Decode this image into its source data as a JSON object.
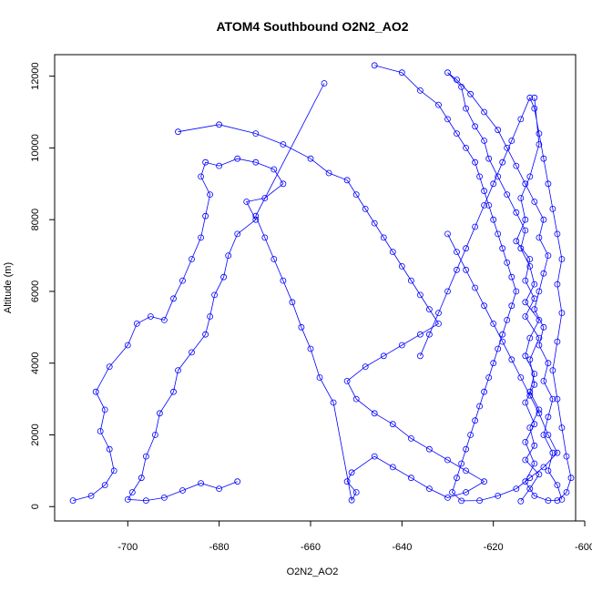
{
  "chart_data": {
    "type": "scatter",
    "title": "ATOM4 Southbound O2N2_AO2",
    "xlabel": "O2N2_AO2",
    "ylabel": "Altitude (m)",
    "xlim": [
      -716,
      -602
    ],
    "ylim": [
      -400,
      12600
    ],
    "x_ticks": [
      -700,
      -680,
      -660,
      -640,
      -620,
      -600
    ],
    "y_ticks": [
      0,
      2000,
      4000,
      6000,
      8000,
      10000,
      12000
    ],
    "series_color": "#0000ff",
    "points_with_lines": true,
    "clusters": [
      {
        "note": "main",
        "points": [
          [
            -614,
            150
          ],
          [
            -612,
            500
          ],
          [
            -610,
            900
          ],
          [
            -613,
            1300
          ],
          [
            -611,
            1700
          ],
          [
            -612,
            2200
          ],
          [
            -610,
            2700
          ],
          [
            -612,
            3200
          ],
          [
            -611,
            3700
          ],
          [
            -613,
            4200
          ],
          [
            -612,
            4700
          ],
          [
            -610,
            5200
          ],
          [
            -613,
            5700
          ],
          [
            -611,
            6200
          ],
          [
            -612,
            6700
          ],
          [
            -614,
            7200
          ],
          [
            -613,
            7700
          ],
          [
            -615,
            8200
          ],
          [
            -617,
            8700
          ],
          [
            -619,
            9200
          ],
          [
            -621,
            9700
          ],
          [
            -622,
            10200
          ],
          [
            -624,
            10600
          ],
          [
            -626,
            11100
          ],
          [
            -627,
            11700
          ],
          [
            -630,
            12100
          ],
          [
            -628,
            11900
          ],
          [
            -625,
            11500
          ],
          [
            -622,
            11000
          ],
          [
            -619,
            10500
          ],
          [
            -617,
            10000
          ],
          [
            -615,
            9500
          ],
          [
            -613,
            9000
          ],
          [
            -611,
            8500
          ],
          [
            -609,
            8000
          ],
          [
            -610,
            7500
          ],
          [
            -608,
            7000
          ],
          [
            -609,
            6500
          ],
          [
            -610,
            6000
          ],
          [
            -611,
            5500
          ],
          [
            -609,
            5000
          ],
          [
            -610,
            4500
          ],
          [
            -608,
            4000
          ],
          [
            -609,
            3500
          ],
          [
            -607,
            3000
          ],
          [
            -608,
            2500
          ],
          [
            -609,
            2000
          ],
          [
            -607,
            1500
          ],
          [
            -608,
            1000
          ],
          [
            -606,
            600
          ],
          [
            -605,
            200
          ]
        ]
      },
      {
        "note": "left",
        "points": [
          [
            -712,
            170
          ],
          [
            -708,
            300
          ],
          [
            -705,
            600
          ],
          [
            -703,
            1000
          ],
          [
            -704,
            1600
          ],
          [
            -706,
            2100
          ],
          [
            -705,
            2700
          ],
          [
            -707,
            3200
          ],
          [
            -704,
            3900
          ],
          [
            -700,
            4500
          ],
          [
            -698,
            5100
          ],
          [
            -695,
            5300
          ],
          [
            -692,
            5200
          ],
          [
            -690,
            5800
          ],
          [
            -688,
            6300
          ],
          [
            -686,
            6900
          ],
          [
            -684,
            7500
          ],
          [
            -683,
            8100
          ],
          [
            -682,
            8700
          ],
          [
            -684,
            9200
          ],
          [
            -683,
            9600
          ],
          [
            -680,
            9500
          ],
          [
            -676,
            9700
          ],
          [
            -672,
            9600
          ],
          [
            -668,
            9400
          ],
          [
            -666,
            9000
          ],
          [
            -670,
            8600
          ],
          [
            -674,
            8500
          ],
          [
            -672,
            8000
          ],
          [
            -676,
            7600
          ],
          [
            -678,
            7000
          ],
          [
            -679,
            6400
          ],
          [
            -681,
            5900
          ],
          [
            -682,
            5300
          ],
          [
            -683,
            4800
          ],
          [
            -686,
            4300
          ],
          [
            -689,
            3800
          ],
          [
            -690,
            3200
          ],
          [
            -693,
            2600
          ],
          [
            -694,
            2000
          ],
          [
            -696,
            1400
          ],
          [
            -697,
            800
          ],
          [
            -699,
            400
          ],
          [
            -700,
            200
          ],
          [
            -696,
            170
          ],
          [
            -692,
            250
          ],
          [
            -688,
            450
          ],
          [
            -684,
            650
          ],
          [
            -680,
            500
          ],
          [
            -676,
            700
          ]
        ]
      },
      {
        "note": "middle",
        "points": [
          [
            -689,
            10450
          ],
          [
            -680,
            10650
          ],
          [
            -672,
            10400
          ],
          [
            -666,
            10100
          ],
          [
            -660,
            9700
          ],
          [
            -656,
            9300
          ],
          [
            -652,
            9100
          ],
          [
            -650,
            8700
          ],
          [
            -648,
            8300
          ],
          [
            -646,
            7900
          ],
          [
            -644,
            7500
          ],
          [
            -642,
            7100
          ],
          [
            -640,
            6700
          ],
          [
            -638,
            6300
          ],
          [
            -636,
            5900
          ],
          [
            -634,
            5500
          ],
          [
            -632,
            5100
          ],
          [
            -636,
            4800
          ],
          [
            -640,
            4500
          ],
          [
            -644,
            4200
          ],
          [
            -648,
            3900
          ],
          [
            -652,
            3500
          ],
          [
            -650,
            3000
          ],
          [
            -646,
            2600
          ],
          [
            -642,
            2300
          ],
          [
            -638,
            1900
          ],
          [
            -634,
            1600
          ],
          [
            -630,
            1300
          ],
          [
            -626,
            1000
          ],
          [
            -622,
            700
          ],
          [
            -626,
            400
          ],
          [
            -630,
            250
          ],
          [
            -634,
            500
          ],
          [
            -638,
            800
          ],
          [
            -642,
            1100
          ],
          [
            -646,
            1400
          ],
          [
            -651,
            950
          ],
          [
            -652,
            700
          ],
          [
            -650,
            400
          ],
          [
            -651,
            180
          ],
          [
            -655,
            2900
          ],
          [
            -658,
            3600
          ],
          [
            -660,
            4400
          ],
          [
            -662,
            5000
          ],
          [
            -664,
            5700
          ],
          [
            -666,
            6300
          ],
          [
            -668,
            6900
          ],
          [
            -670,
            7500
          ],
          [
            -672,
            8100
          ],
          [
            -657,
            11800
          ]
        ]
      },
      {
        "note": "right",
        "points": [
          [
            -646,
            12300
          ],
          [
            -640,
            12100
          ],
          [
            -636,
            11600
          ],
          [
            -632,
            11200
          ],
          [
            -630,
            10800
          ],
          [
            -628,
            10400
          ],
          [
            -626,
            10000
          ],
          [
            -624,
            9600
          ],
          [
            -623,
            9200
          ],
          [
            -622,
            8800
          ],
          [
            -621,
            8400
          ],
          [
            -620,
            8000
          ],
          [
            -619,
            7600
          ],
          [
            -618,
            7200
          ],
          [
            -617,
            6800
          ],
          [
            -616,
            6400
          ],
          [
            -615,
            6000
          ],
          [
            -616,
            5600
          ],
          [
            -617,
            5200
          ],
          [
            -618,
            4800
          ],
          [
            -619,
            4400
          ],
          [
            -620,
            4000
          ],
          [
            -621,
            3600
          ],
          [
            -622,
            3200
          ],
          [
            -623,
            2800
          ],
          [
            -624,
            2400
          ],
          [
            -625,
            2000
          ],
          [
            -626,
            1600
          ],
          [
            -627,
            1200
          ],
          [
            -628,
            800
          ],
          [
            -629,
            400
          ],
          [
            -627,
            160
          ],
          [
            -623,
            170
          ],
          [
            -619,
            300
          ],
          [
            -615,
            500
          ],
          [
            -612,
            800
          ],
          [
            -609,
            1100
          ],
          [
            -606,
            1500
          ],
          [
            -608,
            2000
          ],
          [
            -610,
            2600
          ],
          [
            -612,
            3100
          ],
          [
            -614,
            3600
          ],
          [
            -616,
            4100
          ],
          [
            -618,
            4600
          ],
          [
            -620,
            5100
          ],
          [
            -622,
            5600
          ],
          [
            -624,
            6100
          ],
          [
            -626,
            6600
          ],
          [
            -628,
            7100
          ],
          [
            -630,
            7600
          ]
        ]
      },
      {
        "note": "extra",
        "points": [
          [
            -611,
            11400
          ],
          [
            -610,
            10100
          ],
          [
            -612,
            9200
          ],
          [
            -614,
            8600
          ],
          [
            -613,
            8000
          ],
          [
            -615,
            7400
          ],
          [
            -612,
            6900
          ],
          [
            -613,
            6300
          ],
          [
            -611,
            5800
          ],
          [
            -613,
            5300
          ],
          [
            -610,
            4700
          ],
          [
            -612,
            4100
          ],
          [
            -611,
            3400
          ],
          [
            -613,
            2900
          ],
          [
            -611,
            2300
          ],
          [
            -613,
            1800
          ],
          [
            -611,
            1200
          ],
          [
            -613,
            700
          ],
          [
            -611,
            300
          ],
          [
            -608,
            170
          ],
          [
            -606,
            170
          ],
          [
            -604,
            400
          ],
          [
            -603,
            800
          ],
          [
            -604,
            1400
          ],
          [
            -605,
            2200
          ],
          [
            -606,
            3000
          ],
          [
            -607,
            3800
          ],
          [
            -606,
            4600
          ],
          [
            -605,
            5400
          ],
          [
            -606,
            6200
          ],
          [
            -605,
            6900
          ],
          [
            -606,
            7600
          ],
          [
            -607,
            8300
          ],
          [
            -608,
            9000
          ],
          [
            -609,
            9700
          ],
          [
            -610,
            10400
          ],
          [
            -611,
            11100
          ],
          [
            -612,
            11400
          ],
          [
            -614,
            10800
          ],
          [
            -616,
            10200
          ],
          [
            -618,
            9600
          ],
          [
            -620,
            9000
          ],
          [
            -622,
            8400
          ],
          [
            -624,
            7800
          ],
          [
            -626,
            7200
          ],
          [
            -628,
            6600
          ],
          [
            -630,
            6000
          ],
          [
            -632,
            5400
          ],
          [
            -634,
            4800
          ],
          [
            -636,
            4200
          ]
        ]
      }
    ]
  }
}
